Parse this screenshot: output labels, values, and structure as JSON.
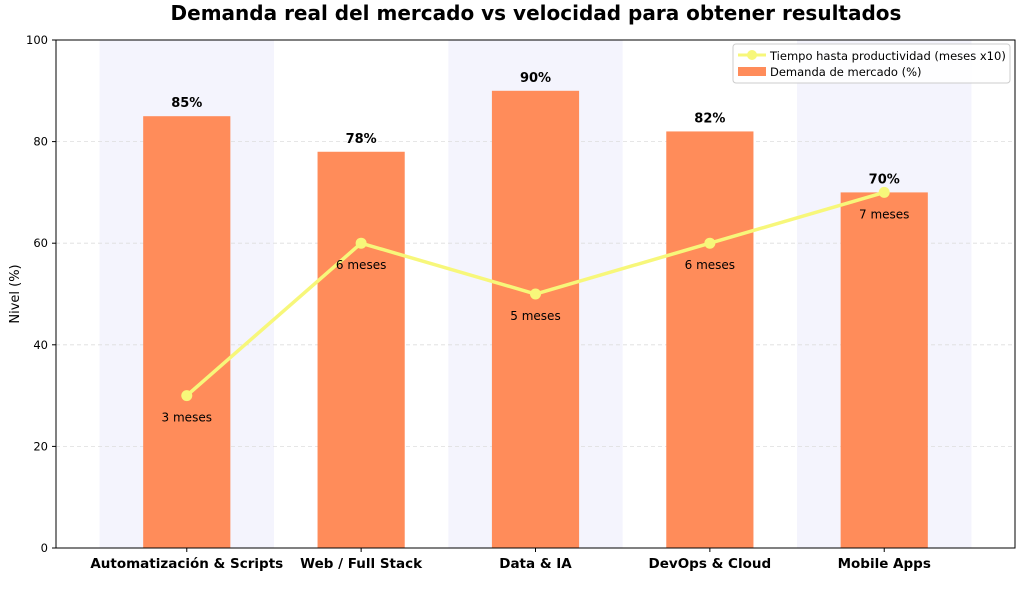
{
  "chart_data": {
    "type": "bar",
    "title": "Demanda real del mercado vs velocidad para obtener resultados",
    "xlabel": "",
    "ylabel": "Nivel (%)",
    "ylim": [
      0,
      100
    ],
    "yticks": [
      0,
      20,
      40,
      60,
      80,
      100
    ],
    "grid": "horizontal dashed",
    "legend_position": "top-right",
    "categories": [
      "Automatización & Scripts",
      "Web / Full Stack",
      "Data & IA",
      "DevOps & Cloud",
      "Mobile Apps"
    ],
    "shaded_categories": [
      0,
      2,
      4
    ],
    "series": [
      {
        "name": "Demanda de mercado (%)",
        "type": "bar",
        "values": [
          85,
          78,
          90,
          82,
          70
        ],
        "labels": [
          "85%",
          "78%",
          "90%",
          "82%",
          "70%"
        ],
        "color": "#ff8c5a"
      },
      {
        "name": "Tiempo hasta productividad (meses x10)",
        "type": "line",
        "values": [
          30,
          60,
          50,
          60,
          70
        ],
        "labels": [
          "3 meses",
          "6 meses",
          "5 meses",
          "6 meses",
          "7 meses"
        ],
        "color": "#f7f77a"
      }
    ],
    "colors": {
      "band": "#f4f4fd",
      "grid": "#dddddd"
    }
  }
}
